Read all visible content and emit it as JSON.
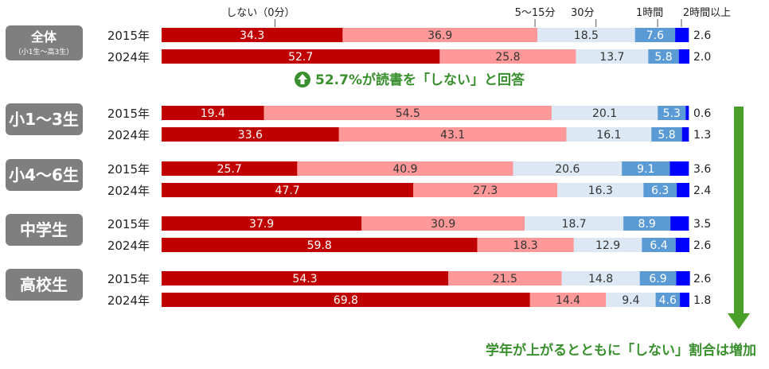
{
  "chart_data": {
    "type": "bar",
    "orientation": "horizontal",
    "stacked": true,
    "percent": true,
    "categories": [
      "しない（0分）",
      "5～15分",
      "30分",
      "1時間",
      "2時間以上"
    ],
    "colors": [
      "#c00000",
      "#ff9999",
      "#dce9f5",
      "#5b9bd5",
      "#0000ff"
    ],
    "groups": [
      {
        "label": "全体",
        "sublabel": "（小1生～高3生）",
        "rows": [
          {
            "year": "2015年",
            "values": [
              34.3,
              36.9,
              18.5,
              7.6,
              2.6
            ]
          },
          {
            "year": "2024年",
            "values": [
              52.7,
              25.8,
              13.7,
              5.8,
              2.0
            ]
          }
        ]
      },
      {
        "label": "小1～3生",
        "sublabel": "",
        "rows": [
          {
            "year": "2015年",
            "values": [
              19.4,
              54.5,
              20.1,
              5.3,
              0.6
            ]
          },
          {
            "year": "2024年",
            "values": [
              33.6,
              43.1,
              16.1,
              5.8,
              1.3
            ]
          }
        ]
      },
      {
        "label": "小4～6生",
        "sublabel": "",
        "rows": [
          {
            "year": "2015年",
            "values": [
              25.7,
              40.9,
              20.6,
              9.1,
              3.6
            ]
          },
          {
            "year": "2024年",
            "values": [
              47.7,
              27.3,
              16.3,
              6.3,
              2.4
            ]
          }
        ]
      },
      {
        "label": "中学生",
        "sublabel": "",
        "rows": [
          {
            "year": "2015年",
            "values": [
              37.9,
              30.9,
              18.7,
              8.9,
              3.5
            ]
          },
          {
            "year": "2024年",
            "values": [
              59.8,
              18.3,
              12.9,
              6.4,
              2.6
            ]
          }
        ]
      },
      {
        "label": "高校生",
        "sublabel": "",
        "rows": [
          {
            "year": "2015年",
            "values": [
              54.3,
              21.5,
              14.8,
              6.9,
              2.6
            ]
          },
          {
            "year": "2024年",
            "values": [
              69.8,
              14.4,
              9.4,
              4.6,
              1.8
            ]
          }
        ]
      }
    ],
    "annotation": "52.7%が読書を「しない」と回答",
    "trend_note": "学年が上がるとともに「しない」割合は増加",
    "xlim": [
      0,
      100
    ],
    "legend_position": "top"
  }
}
